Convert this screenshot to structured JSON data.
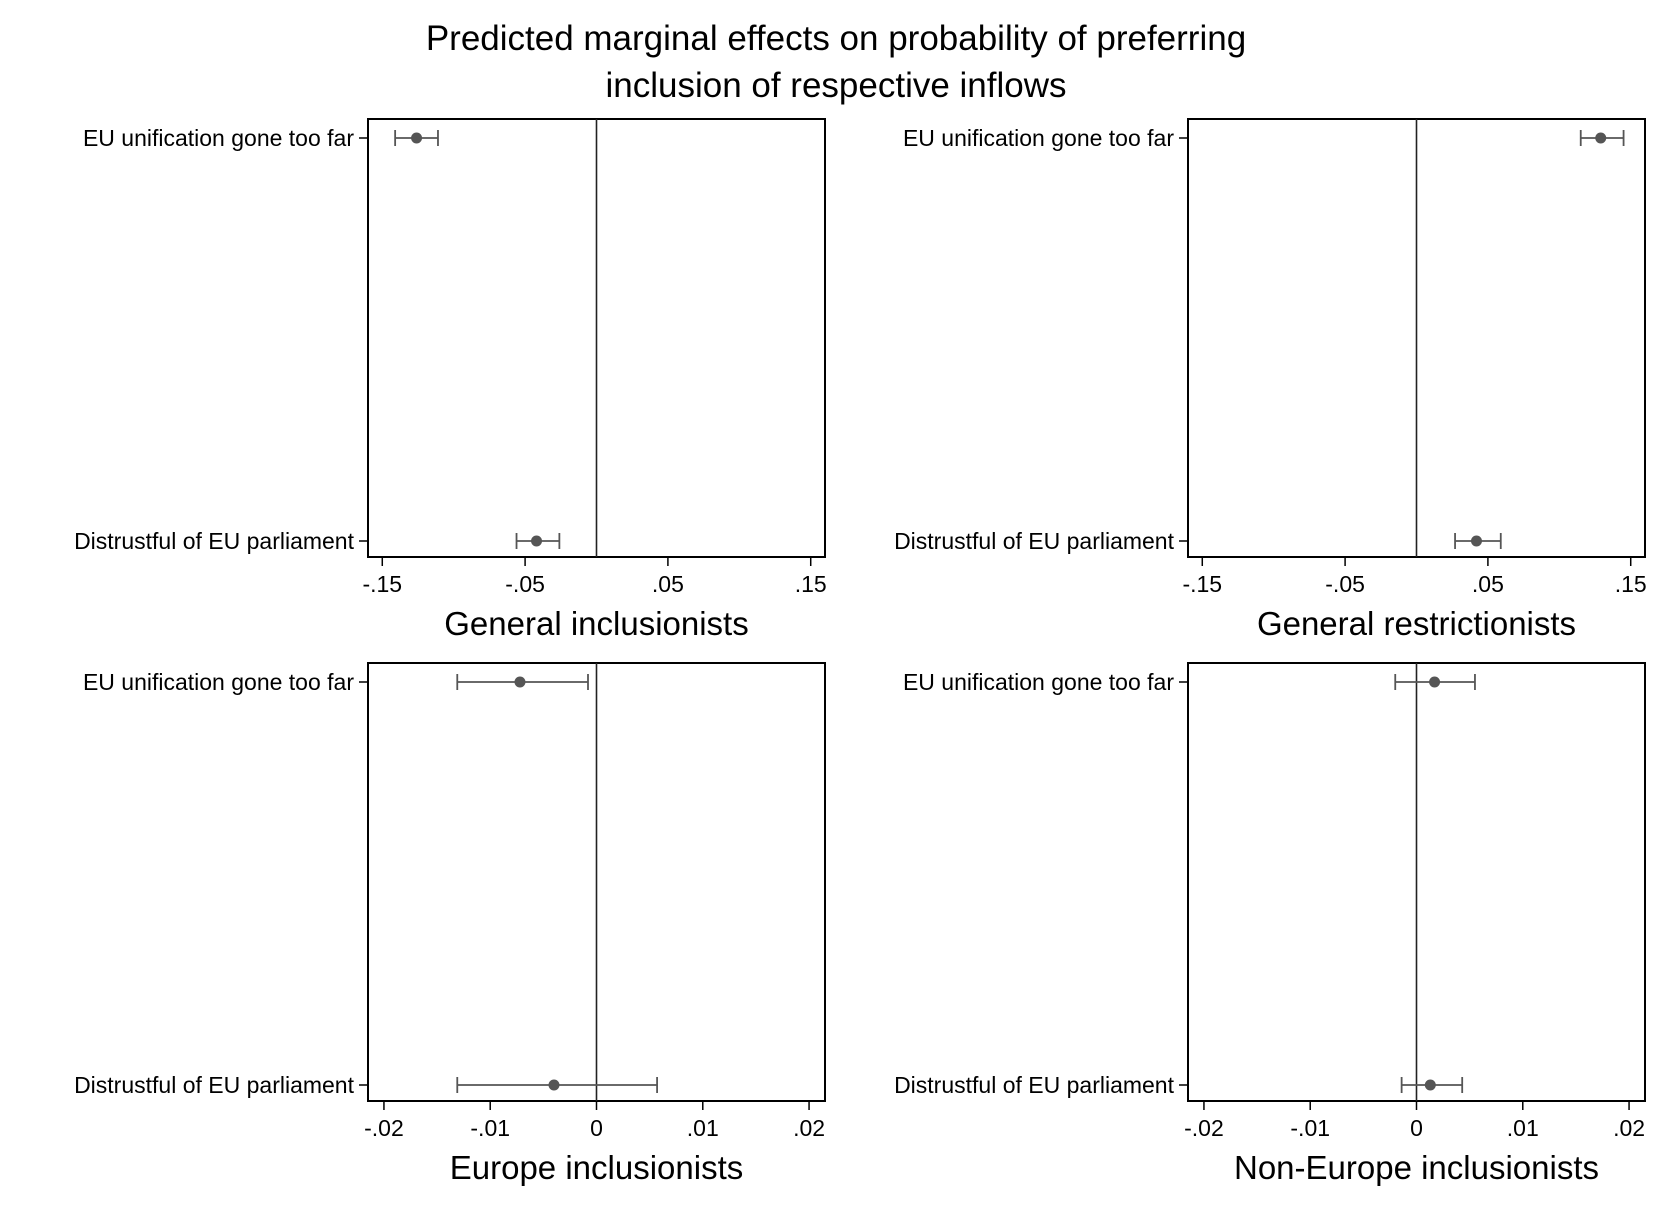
{
  "figure": {
    "title_lines": [
      "Predicted marginal effects on probability of preferring",
      "inclusion of respective inflows"
    ]
  },
  "chart_data": [
    {
      "type": "scatter",
      "title": "General inclusionists",
      "xlim": [
        -0.16,
        0.16
      ],
      "xticks": [
        -0.15,
        -0.05,
        0.05,
        0.15
      ],
      "xtick_labels": [
        "-.15",
        "-.05",
        ".05",
        ".15"
      ],
      "reference_line_x": 0,
      "categories": [
        "EU unification gone too far",
        "Distrustful of EU parliament"
      ],
      "points": [
        {
          "label": "EU unification gone too far",
          "estimate": -0.126,
          "ci_low": -0.141,
          "ci_high": -0.111
        },
        {
          "label": "Distrustful of EU parliament",
          "estimate": -0.042,
          "ci_low": -0.056,
          "ci_high": -0.026
        }
      ]
    },
    {
      "type": "scatter",
      "title": "General restrictionists",
      "xlim": [
        -0.16,
        0.16
      ],
      "xticks": [
        -0.15,
        -0.05,
        0.05,
        0.15
      ],
      "xtick_labels": [
        "-.15",
        "-.05",
        ".05",
        ".15"
      ],
      "reference_line_x": 0,
      "categories": [
        "EU unification gone too far",
        "Distrustful of EU parliament"
      ],
      "points": [
        {
          "label": "EU unification gone too far",
          "estimate": 0.129,
          "ci_low": 0.115,
          "ci_high": 0.145
        },
        {
          "label": "Distrustful of EU parliament",
          "estimate": 0.042,
          "ci_low": 0.027,
          "ci_high": 0.059
        }
      ]
    },
    {
      "type": "scatter",
      "title": "Europe inclusionists",
      "xlim": [
        -0.0215,
        0.0215
      ],
      "xticks": [
        -0.02,
        -0.01,
        0,
        0.01,
        0.02
      ],
      "xtick_labels": [
        "-.02",
        "-.01",
        "0",
        ".01",
        ".02"
      ],
      "reference_line_x": 0,
      "categories": [
        "EU unification gone too far",
        "Distrustful of EU parliament"
      ],
      "points": [
        {
          "label": "EU unification gone too far",
          "estimate": -0.0072,
          "ci_low": -0.0131,
          "ci_high": -0.0008
        },
        {
          "label": "Distrustful of EU parliament",
          "estimate": -0.004,
          "ci_low": -0.0131,
          "ci_high": 0.0057
        }
      ]
    },
    {
      "type": "scatter",
      "title": "Non-Europe inclusionists",
      "xlim": [
        -0.0215,
        0.0215
      ],
      "xticks": [
        -0.02,
        -0.01,
        0,
        0.01,
        0.02
      ],
      "xtick_labels": [
        "-.02",
        "-.01",
        "0",
        ".01",
        ".02"
      ],
      "reference_line_x": 0,
      "categories": [
        "EU unification gone too far",
        "Distrustful of EU parliament"
      ],
      "points": [
        {
          "label": "EU unification gone too far",
          "estimate": 0.0017,
          "ci_low": -0.002,
          "ci_high": 0.0055
        },
        {
          "label": "Distrustful of EU parliament",
          "estimate": 0.0013,
          "ci_low": -0.0014,
          "ci_high": 0.0043
        }
      ]
    }
  ]
}
